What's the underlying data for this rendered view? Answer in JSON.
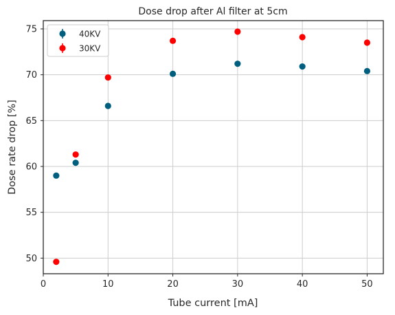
{
  "chart_data": {
    "type": "scatter",
    "title": "Dose drop after Al filter at 5cm",
    "xlabel": "Tube current [mA]",
    "ylabel": "Dose rate drop [%]",
    "xlim": [
      0,
      52.5
    ],
    "ylim": [
      48.3,
      75.9
    ],
    "xticks": [
      0,
      10,
      20,
      30,
      40,
      50
    ],
    "yticks": [
      50,
      55,
      60,
      65,
      70,
      75
    ],
    "grid": true,
    "legend_position": "top-left",
    "series": [
      {
        "name": "40KV",
        "color": "#005f7f",
        "points": [
          {
            "x": 2,
            "y": 59.0
          },
          {
            "x": 5,
            "y": 60.4
          },
          {
            "x": 10,
            "y": 66.6
          },
          {
            "x": 20,
            "y": 70.1
          },
          {
            "x": 30,
            "y": 71.2
          },
          {
            "x": 40,
            "y": 70.9
          },
          {
            "x": 50,
            "y": 70.4
          }
        ]
      },
      {
        "name": "30KV",
        "color": "#ff0000",
        "points": [
          {
            "x": 2,
            "y": 49.6
          },
          {
            "x": 5,
            "y": 61.3
          },
          {
            "x": 10,
            "y": 69.7
          },
          {
            "x": 20,
            "y": 73.7
          },
          {
            "x": 30,
            "y": 74.7
          },
          {
            "x": 40,
            "y": 74.1
          },
          {
            "x": 50,
            "y": 73.5
          }
        ]
      }
    ]
  }
}
